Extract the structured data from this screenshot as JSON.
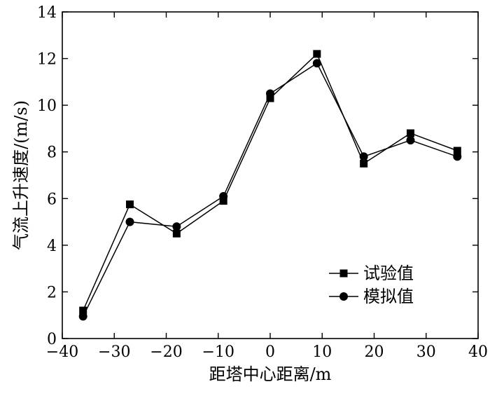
{
  "chart_data": {
    "type": "line",
    "xlabel": "距塔中心距离/m",
    "ylabel": "气流上升速度/(m/s)",
    "xlim": [
      -40,
      40
    ],
    "ylim": [
      0,
      14
    ],
    "xticks": [
      -40,
      -30,
      -20,
      -10,
      0,
      10,
      20,
      30,
      40
    ],
    "yticks": [
      0,
      2,
      4,
      6,
      8,
      10,
      12,
      14
    ],
    "xtick_labels": [
      "−40",
      "−30",
      "−20",
      "−10",
      "0",
      "10",
      "20",
      "30",
      "40"
    ],
    "ytick_labels": [
      "0",
      "2",
      "4",
      "6",
      "8",
      "10",
      "12",
      "14"
    ],
    "grid": false,
    "legend_position": "lower-right",
    "series": [
      {
        "name": "试验值",
        "marker": "square",
        "color": "#000000",
        "x": [
          -36,
          -27,
          -18,
          -9,
          0,
          9,
          18,
          27,
          36
        ],
        "y": [
          1.2,
          5.75,
          4.5,
          5.9,
          10.3,
          12.2,
          7.5,
          8.8,
          8.05
        ]
      },
      {
        "name": "模拟值",
        "marker": "circle",
        "color": "#000000",
        "x": [
          -36,
          -27,
          -18,
          -9,
          0,
          9,
          18,
          27,
          36
        ],
        "y": [
          0.95,
          5.0,
          4.8,
          6.1,
          10.5,
          11.8,
          7.8,
          8.5,
          7.8
        ]
      }
    ]
  }
}
